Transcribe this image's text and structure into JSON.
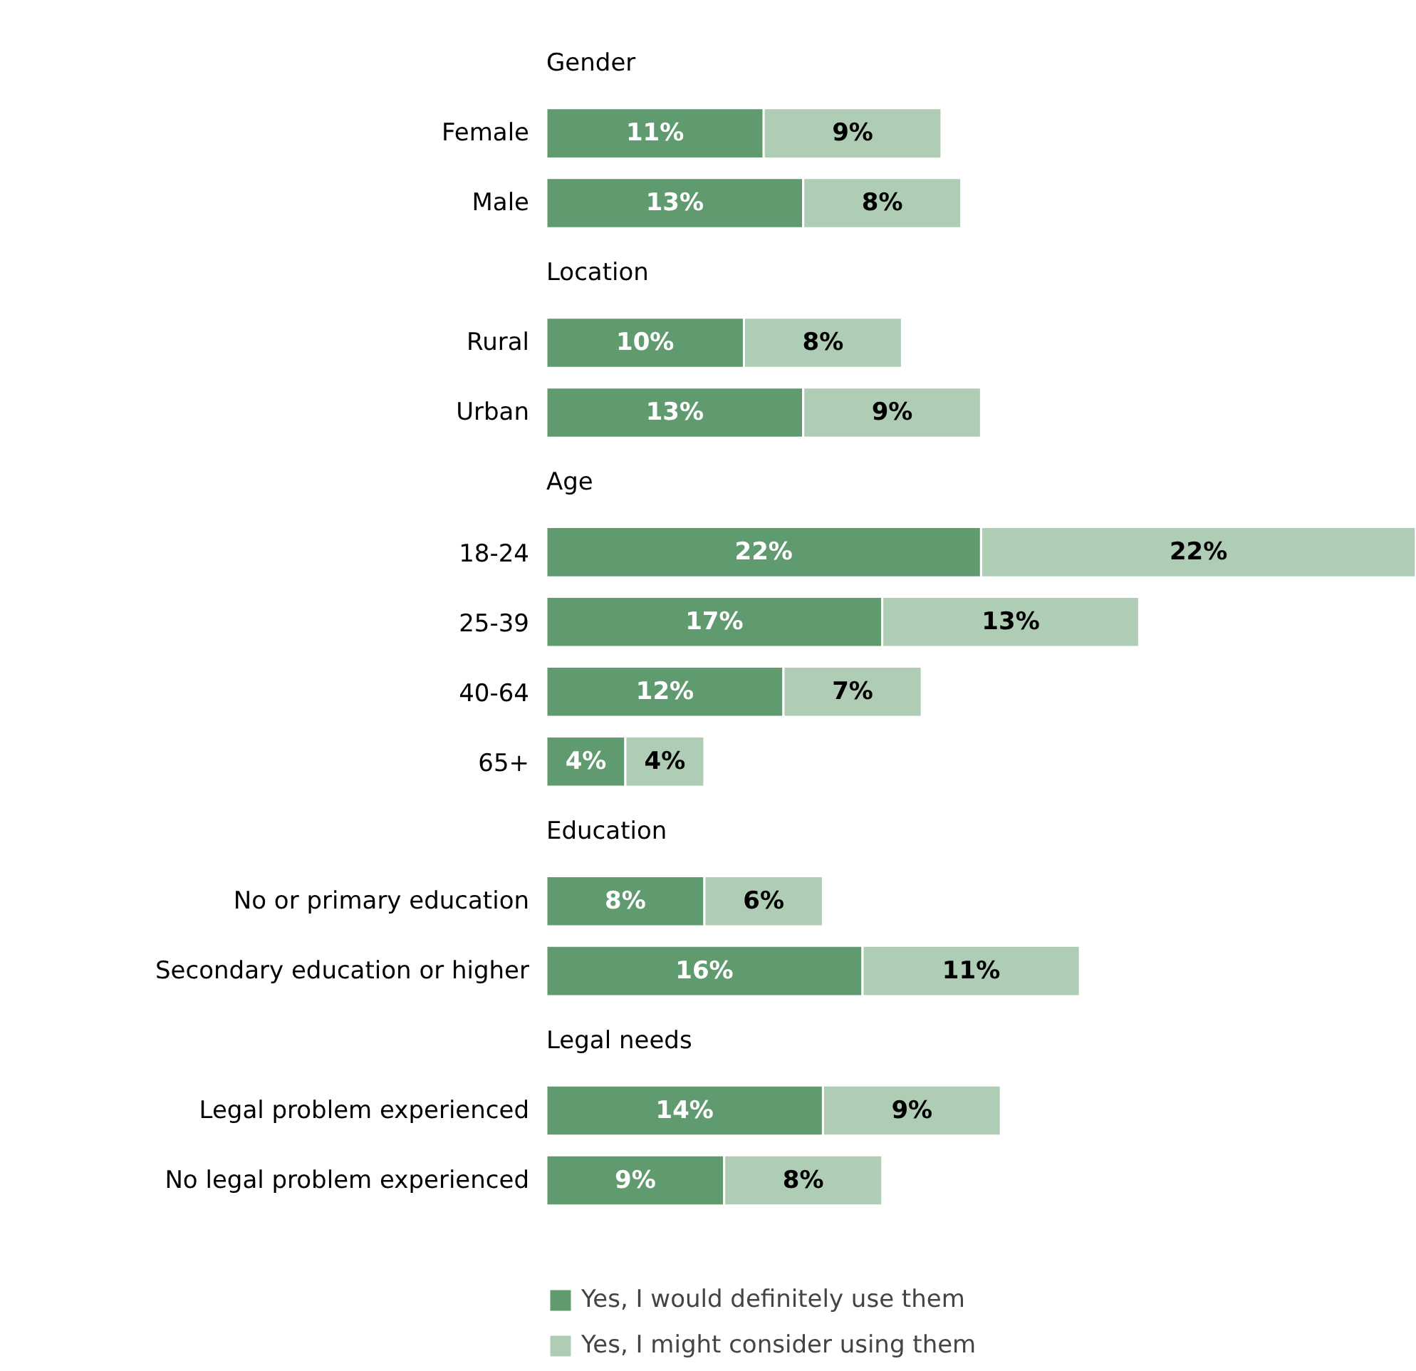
{
  "chart_data": {
    "type": "bar",
    "orientation": "horizontal",
    "stacked": true,
    "legend": "bottom",
    "categories": [
      "Gender",
      "Female",
      "Male",
      "Location",
      "Rural",
      "Urban",
      "Age",
      "18-24",
      "25-39",
      "40-64",
      "65+",
      "Education",
      "No or primary education",
      "Secondary education or higher",
      "Legal needs",
      "Legal problem experienced",
      "No legal problem experienced"
    ],
    "series": [
      {
        "name": "Yes, I would definitely use them",
        "color": "#5f9b6e",
        "values": [
          null,
          11,
          13,
          null,
          10,
          13,
          null,
          22,
          17,
          12,
          4,
          null,
          8,
          16,
          null,
          14,
          9
        ],
        "value_labels": [
          null,
          "11%",
          "13%",
          null,
          "10%",
          "13%",
          null,
          "22%",
          "17%",
          "12%",
          "4%",
          null,
          "8%",
          "16%",
          null,
          "14%",
          "9%"
        ]
      },
      {
        "name": "Yes, I might consider using them",
        "color": "#afcdb4",
        "values": [
          null,
          9,
          8,
          null,
          8,
          9,
          null,
          22,
          13,
          7,
          4,
          null,
          6,
          11,
          null,
          9,
          8
        ],
        "value_labels": [
          null,
          "9%",
          "8%",
          null,
          "8%",
          "9%",
          null,
          "22%",
          "13%",
          "7%",
          "4%",
          null,
          "6%",
          "11%",
          null,
          "9%",
          "8%"
        ]
      }
    ]
  }
}
